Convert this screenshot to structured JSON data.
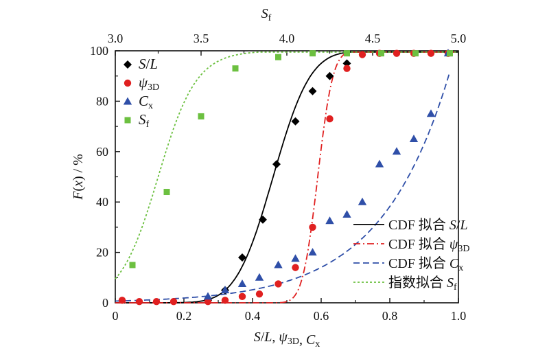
{
  "chart_data": {
    "type": "scatter",
    "axes": {
      "bottom": {
        "label": "S/L, ψ3D, Cx",
        "range": [
          0,
          1.0
        ],
        "ticks": [
          "0",
          "0.2",
          "0.4",
          "0.6",
          "0.8",
          "1.0"
        ],
        "tick_values": [
          0,
          0.2,
          0.4,
          0.6,
          0.8,
          1.0
        ]
      },
      "top": {
        "label": "Sf",
        "range": [
          3.0,
          5.0
        ],
        "ticks": [
          "3.0",
          "3.5",
          "4.0",
          "4.5",
          "5.0"
        ],
        "tick_values": [
          3.0,
          3.5,
          4.0,
          4.5,
          5.0
        ]
      },
      "left": {
        "label": "F(x) / %",
        "range": [
          0,
          100
        ],
        "ticks": [
          "0",
          "20",
          "40",
          "60",
          "80",
          "100"
        ],
        "tick_values": [
          0,
          20,
          40,
          60,
          80,
          100
        ]
      }
    },
    "legend_position": "top-left",
    "fit_legend_position": "bottom-right",
    "series": [
      {
        "name": "S/L",
        "marker": "diamond",
        "color": "#000000",
        "x": [
          0.27,
          0.32,
          0.37,
          0.43,
          0.47,
          0.525,
          0.575,
          0.625,
          0.675
        ],
        "y": [
          1,
          5,
          18,
          33,
          55,
          72,
          84,
          90,
          95
        ]
      },
      {
        "name": "ψ3D",
        "marker": "circle",
        "color": "#e02020",
        "x": [
          0.02,
          0.07,
          0.12,
          0.17,
          0.27,
          0.32,
          0.37,
          0.42,
          0.475,
          0.525,
          0.575,
          0.625,
          0.675,
          0.72,
          0.77,
          0.82,
          0.87,
          0.92,
          0.97
        ],
        "y": [
          1,
          0.5,
          0.5,
          0.5,
          0.5,
          1,
          2.5,
          3.5,
          7.5,
          14,
          30,
          73,
          93,
          98.5,
          99,
          99,
          99,
          99,
          99
        ]
      },
      {
        "name": "Cx",
        "marker": "triangle",
        "color": "#2f4fa8",
        "x": [
          0.27,
          0.32,
          0.37,
          0.42,
          0.475,
          0.525,
          0.575,
          0.625,
          0.675,
          0.72,
          0.77,
          0.82,
          0.87,
          0.92,
          0.97
        ],
        "y": [
          2.5,
          5,
          7.5,
          10,
          15,
          17.5,
          20,
          32.5,
          35,
          40,
          55,
          60,
          65,
          75,
          99
        ]
      },
      {
        "name": "Sf",
        "marker": "square",
        "color": "#6cc040",
        "axis": "top",
        "x": [
          3.1,
          3.3,
          3.5,
          3.7,
          3.95,
          4.15,
          4.35,
          4.55,
          4.75,
          4.95
        ],
        "y": [
          15,
          44,
          74,
          93,
          97.5,
          99,
          99,
          99,
          99,
          99
        ]
      }
    ],
    "fits": [
      {
        "name": "CDF 拟合 S/L",
        "style": "solid",
        "color": "#000000",
        "kind": "normal_cdf",
        "mu": 0.46,
        "sigma": 0.085,
        "axis": "bottom"
      },
      {
        "name": "CDF 拟合 ψ3D",
        "style": "dashdot",
        "color": "#e02020",
        "kind": "normal_cdf",
        "mu": 0.59,
        "sigma": 0.035,
        "axis": "bottom"
      },
      {
        "name": "CDF 拟合 Cx",
        "style": "dashed",
        "color": "#2f4fa8",
        "kind": "exp_growth",
        "a": 0.7,
        "b": 5.0,
        "axis": "bottom"
      },
      {
        "name": "指数拟合 Sf",
        "style": "dotted",
        "color": "#6cc040",
        "kind": "logistic",
        "x0": 3.25,
        "k": 9.0,
        "axis": "top"
      }
    ]
  }
}
